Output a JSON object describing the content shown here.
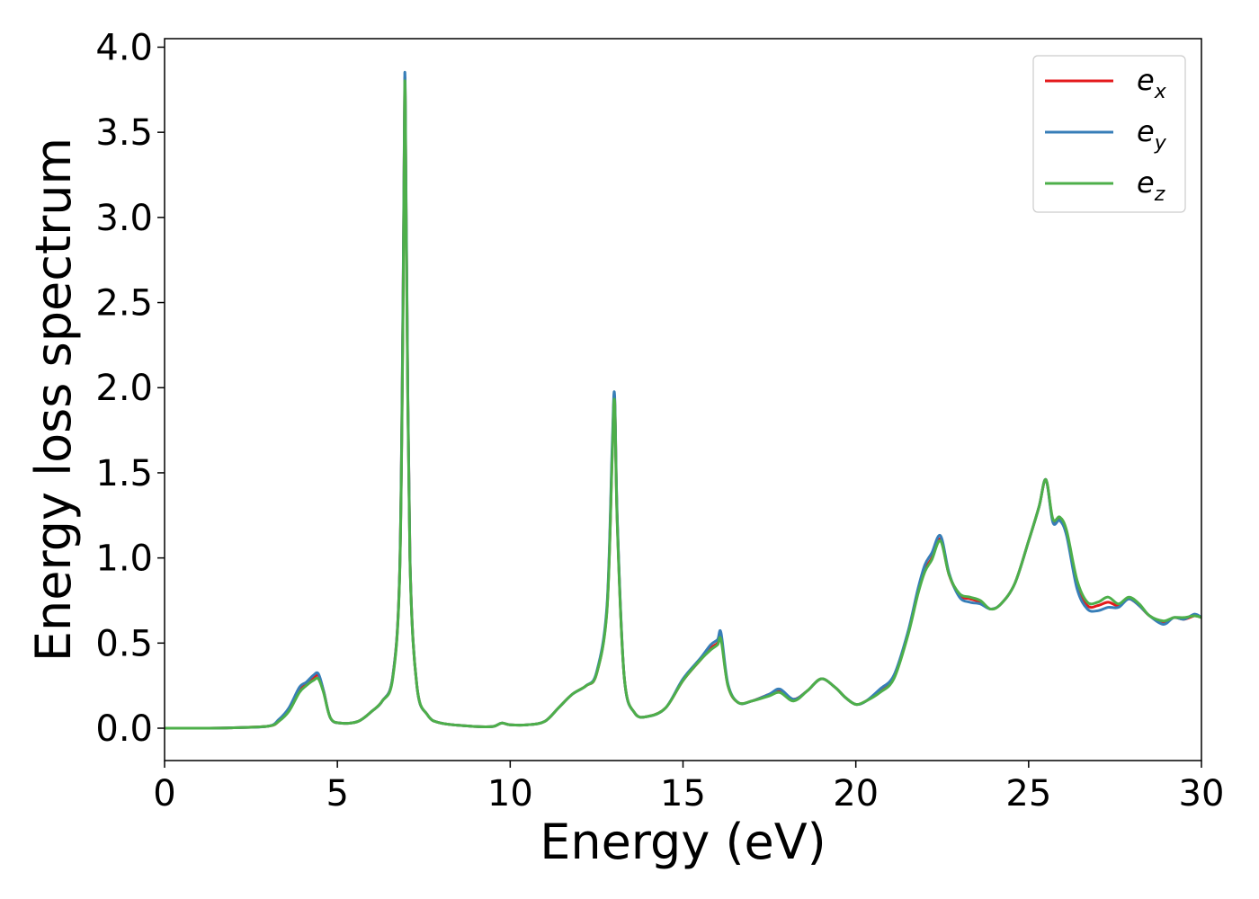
{
  "chart_data": {
    "type": "line",
    "title": "",
    "xlabel": "Energy (eV)",
    "ylabel": "Energy loss spectrum",
    "xlim": [
      0,
      30
    ],
    "ylim": [
      -0.19,
      4.05
    ],
    "xticks": [
      0,
      5,
      10,
      15,
      20,
      25,
      30
    ],
    "xtick_labels": [
      "0",
      "5",
      "10",
      "15",
      "20",
      "25",
      "30"
    ],
    "yticks": [
      0.0,
      0.5,
      1.0,
      1.5,
      2.0,
      2.5,
      3.0,
      3.5,
      4.0
    ],
    "ytick_labels": [
      "0.0",
      "0.5",
      "1.0",
      "1.5",
      "2.0",
      "2.5",
      "3.0",
      "3.5",
      "4.0"
    ],
    "grid": false,
    "legend_position": "top-right",
    "series": [
      {
        "name": "e_x",
        "label_main": "e",
        "label_sub": "x",
        "color": "#e41a1c",
        "x": [
          0,
          1,
          2,
          3,
          3.3,
          3.6,
          3.9,
          4.1,
          4.3,
          4.45,
          4.6,
          4.8,
          5.1,
          5.6,
          6.0,
          6.3,
          6.6,
          6.8,
          6.9,
          6.95,
          7.0,
          7.1,
          7.3,
          7.6,
          8.0,
          9.0,
          9.5,
          9.75,
          10.0,
          10.5,
          11.0,
          11.4,
          11.8,
          12.2,
          12.5,
          12.8,
          12.95,
          13.02,
          13.1,
          13.3,
          13.6,
          14.0,
          14.5,
          15.0,
          15.5,
          15.8,
          16.0,
          16.1,
          16.3,
          16.6,
          17.0,
          17.5,
          17.8,
          18.2,
          18.6,
          19.0,
          19.4,
          19.7,
          20.0,
          20.3,
          20.7,
          21.1,
          21.5,
          21.8,
          22.0,
          22.2,
          22.45,
          22.7,
          23.0,
          23.3,
          23.6,
          23.9,
          24.2,
          24.6,
          25.0,
          25.3,
          25.5,
          25.7,
          25.9,
          26.1,
          26.4,
          26.7,
          27.0,
          27.3,
          27.6,
          27.9,
          28.2,
          28.5,
          28.9,
          29.2,
          29.5,
          29.8,
          30.0
        ],
        "y": [
          0.0,
          0.0,
          0.003,
          0.012,
          0.04,
          0.11,
          0.22,
          0.26,
          0.29,
          0.31,
          0.22,
          0.06,
          0.03,
          0.04,
          0.1,
          0.16,
          0.3,
          0.9,
          2.5,
          3.82,
          2.8,
          1.0,
          0.25,
          0.08,
          0.03,
          0.01,
          0.01,
          0.03,
          0.02,
          0.02,
          0.04,
          0.12,
          0.2,
          0.25,
          0.32,
          0.7,
          1.6,
          1.94,
          1.2,
          0.3,
          0.09,
          0.07,
          0.12,
          0.28,
          0.4,
          0.47,
          0.5,
          0.54,
          0.25,
          0.15,
          0.16,
          0.2,
          0.22,
          0.17,
          0.22,
          0.29,
          0.24,
          0.18,
          0.14,
          0.16,
          0.22,
          0.3,
          0.55,
          0.8,
          0.93,
          1.0,
          1.11,
          0.9,
          0.78,
          0.76,
          0.74,
          0.7,
          0.73,
          0.85,
          1.1,
          1.3,
          1.46,
          1.22,
          1.23,
          1.15,
          0.85,
          0.72,
          0.72,
          0.74,
          0.72,
          0.76,
          0.72,
          0.66,
          0.62,
          0.65,
          0.64,
          0.66,
          0.65
        ]
      },
      {
        "name": "e_y",
        "label_main": "e",
        "label_sub": "y",
        "color": "#377eb8",
        "x": [
          0,
          1,
          2,
          3,
          3.3,
          3.6,
          3.9,
          4.1,
          4.3,
          4.45,
          4.6,
          4.8,
          5.1,
          5.6,
          6.0,
          6.3,
          6.6,
          6.8,
          6.9,
          6.95,
          7.0,
          7.1,
          7.3,
          7.6,
          8.0,
          9.0,
          9.5,
          9.75,
          10.0,
          10.5,
          11.0,
          11.4,
          11.8,
          12.2,
          12.5,
          12.8,
          12.95,
          13.02,
          13.1,
          13.3,
          13.6,
          14.0,
          14.5,
          15.0,
          15.5,
          15.8,
          16.0,
          16.1,
          16.3,
          16.6,
          17.0,
          17.5,
          17.8,
          18.2,
          18.6,
          19.0,
          19.4,
          19.7,
          20.0,
          20.3,
          20.7,
          21.1,
          21.5,
          21.8,
          22.0,
          22.2,
          22.45,
          22.7,
          23.0,
          23.3,
          23.6,
          23.9,
          24.2,
          24.6,
          25.0,
          25.3,
          25.5,
          25.7,
          25.9,
          26.1,
          26.4,
          26.7,
          27.0,
          27.3,
          27.6,
          27.9,
          28.2,
          28.5,
          28.9,
          29.2,
          29.5,
          29.8,
          30.0
        ],
        "y": [
          0.0,
          0.0,
          0.003,
          0.012,
          0.05,
          0.12,
          0.24,
          0.27,
          0.31,
          0.32,
          0.22,
          0.06,
          0.03,
          0.04,
          0.1,
          0.16,
          0.3,
          0.9,
          2.55,
          3.85,
          2.85,
          1.0,
          0.25,
          0.08,
          0.03,
          0.01,
          0.01,
          0.03,
          0.02,
          0.02,
          0.04,
          0.12,
          0.2,
          0.25,
          0.33,
          0.72,
          1.65,
          1.96,
          1.22,
          0.3,
          0.09,
          0.07,
          0.12,
          0.29,
          0.41,
          0.49,
          0.52,
          0.56,
          0.26,
          0.15,
          0.16,
          0.2,
          0.23,
          0.17,
          0.22,
          0.29,
          0.24,
          0.18,
          0.14,
          0.16,
          0.23,
          0.31,
          0.56,
          0.82,
          0.96,
          1.03,
          1.13,
          0.91,
          0.77,
          0.74,
          0.73,
          0.7,
          0.73,
          0.85,
          1.1,
          1.3,
          1.46,
          1.21,
          1.22,
          1.13,
          0.82,
          0.7,
          0.69,
          0.71,
          0.71,
          0.76,
          0.72,
          0.66,
          0.61,
          0.65,
          0.64,
          0.67,
          0.65
        ]
      },
      {
        "name": "e_z",
        "label_main": "e",
        "label_sub": "z",
        "color": "#4daf4a",
        "x": [
          0,
          1,
          2,
          3,
          3.3,
          3.6,
          3.9,
          4.1,
          4.3,
          4.45,
          4.6,
          4.8,
          5.1,
          5.6,
          6.0,
          6.3,
          6.6,
          6.8,
          6.9,
          6.95,
          7.0,
          7.1,
          7.3,
          7.6,
          8.0,
          9.0,
          9.5,
          9.75,
          10.0,
          10.5,
          11.0,
          11.4,
          11.8,
          12.2,
          12.5,
          12.8,
          12.95,
          13.02,
          13.1,
          13.3,
          13.6,
          14.0,
          14.5,
          15.0,
          15.5,
          15.8,
          16.0,
          16.1,
          16.3,
          16.6,
          17.0,
          17.5,
          17.8,
          18.2,
          18.6,
          19.0,
          19.4,
          19.7,
          20.0,
          20.3,
          20.7,
          21.1,
          21.5,
          21.8,
          22.0,
          22.2,
          22.45,
          22.7,
          23.0,
          23.3,
          23.6,
          23.9,
          24.2,
          24.6,
          25.0,
          25.3,
          25.5,
          25.7,
          25.9,
          26.1,
          26.4,
          26.7,
          27.0,
          27.3,
          27.6,
          27.9,
          28.2,
          28.5,
          28.9,
          29.2,
          29.5,
          29.8,
          30.0
        ],
        "y": [
          0.0,
          0.0,
          0.003,
          0.012,
          0.04,
          0.1,
          0.21,
          0.25,
          0.28,
          0.29,
          0.21,
          0.06,
          0.03,
          0.04,
          0.1,
          0.16,
          0.29,
          0.88,
          2.45,
          3.8,
          2.75,
          0.98,
          0.25,
          0.08,
          0.03,
          0.01,
          0.01,
          0.03,
          0.02,
          0.02,
          0.04,
          0.12,
          0.2,
          0.25,
          0.32,
          0.69,
          1.58,
          1.92,
          1.18,
          0.3,
          0.09,
          0.07,
          0.12,
          0.28,
          0.4,
          0.46,
          0.49,
          0.52,
          0.25,
          0.15,
          0.16,
          0.19,
          0.21,
          0.16,
          0.22,
          0.29,
          0.24,
          0.18,
          0.14,
          0.16,
          0.21,
          0.29,
          0.54,
          0.79,
          0.92,
          0.99,
          1.1,
          0.9,
          0.79,
          0.77,
          0.75,
          0.7,
          0.73,
          0.85,
          1.1,
          1.3,
          1.46,
          1.23,
          1.24,
          1.16,
          0.87,
          0.74,
          0.74,
          0.77,
          0.73,
          0.77,
          0.73,
          0.66,
          0.63,
          0.65,
          0.65,
          0.66,
          0.65
        ]
      }
    ]
  }
}
